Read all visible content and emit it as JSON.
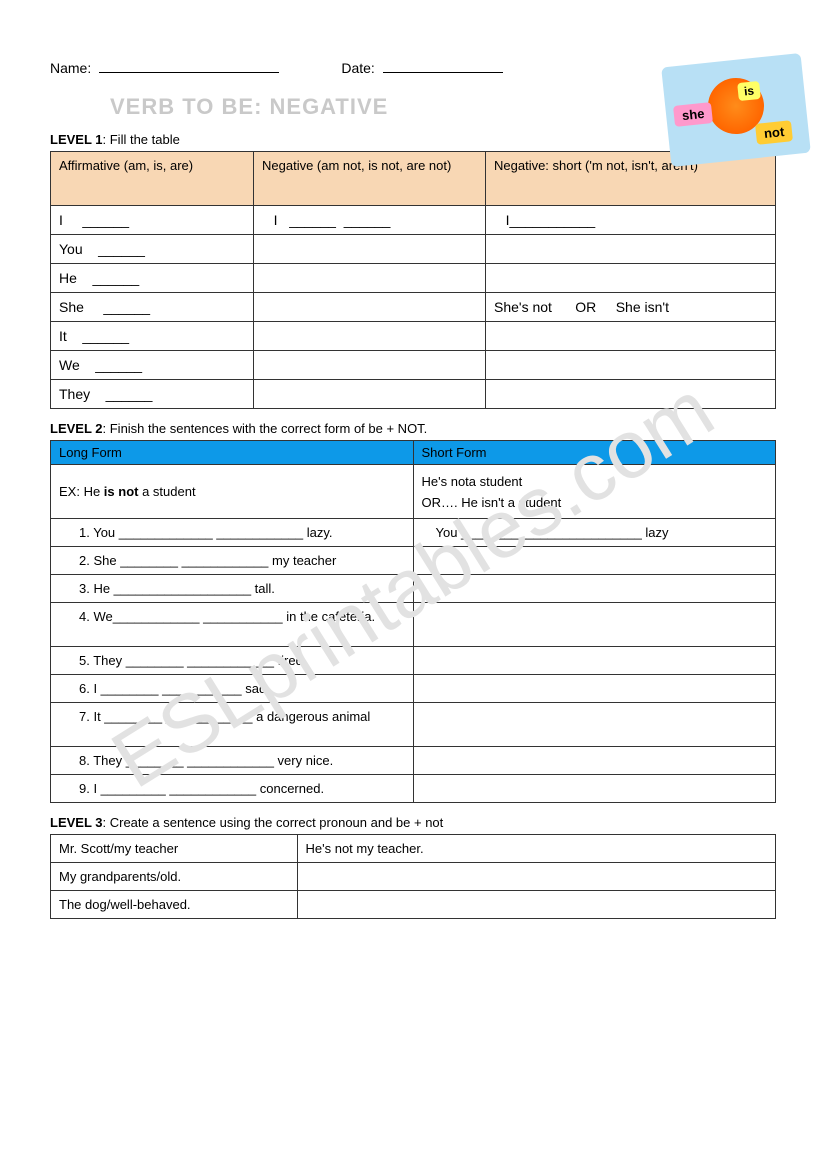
{
  "header": {
    "name_label": "Name:",
    "date_label": "Date:"
  },
  "title": "VERB TO BE: NEGATIVE",
  "watermark": "ESLprintables.com",
  "sticker": {
    "she": "she",
    "is": "is",
    "not": "not"
  },
  "level1": {
    "label_bold": "LEVEL 1",
    "label_rest": ": Fill the table",
    "headers": [
      "Affirmative (am, is, are)",
      "Negative (am not, is not, are not)",
      "Negative: short ('m not, isn't, aren't)"
    ],
    "rows": [
      {
        "c1": "I     ______",
        "c2": "   I   ______  ______",
        "c3": "   I___________"
      },
      {
        "c1": "You    ______",
        "c2": "",
        "c3": ""
      },
      {
        "c1": "He    ______",
        "c2": "",
        "c3": ""
      },
      {
        "c1": "She     ______",
        "c2": "",
        "c3": "She's not      OR     She isn't"
      },
      {
        "c1": "It    ______",
        "c2": "",
        "c3": ""
      },
      {
        "c1": "We    ______",
        "c2": "",
        "c3": ""
      },
      {
        "c1": "They    ______",
        "c2": "",
        "c3": ""
      }
    ]
  },
  "level2": {
    "label_bold": "LEVEL 2",
    "label_rest": ": Finish the sentences with the correct form of be + NOT.",
    "headers": [
      "Long Form",
      "Short Form"
    ],
    "ex_left": "EX: He is not a student",
    "ex_right_1": "He's nota student",
    "ex_right_2": "OR…. He isn't a student",
    "rows": [
      {
        "left": "1.  You _____________ ____________ lazy.",
        "right": "You _________________________ lazy"
      },
      {
        "left": "2.  She ________ ____________ my teacher",
        "right": ""
      },
      {
        "left": "3.  He ___________________ tall.",
        "right": ""
      },
      {
        "left": "4.  We____________ ___________ in the cafeteria.",
        "right": "",
        "multi": true
      },
      {
        "left": "5.  They ________ ____________ tired",
        "right": ""
      },
      {
        "left": "6.  I ________ ___________ sad",
        "right": ""
      },
      {
        "left": "7.  It ________ ____________ a dangerous animal",
        "right": "",
        "multi": true
      },
      {
        "left": "8.  They ________ ____________ very nice.",
        "right": ""
      },
      {
        "left": "9.  I _________ ____________ concerned.",
        "right": ""
      }
    ]
  },
  "level3": {
    "label_bold": "LEVEL 3",
    "label_rest": ": Create a sentence using the correct pronoun and be + not",
    "rows": [
      {
        "c1": "Mr. Scott/my teacher",
        "c2": "He's not my teacher."
      },
      {
        "c1": "My grandparents/old.",
        "c2": ""
      },
      {
        "c1": "The dog/well-behaved.",
        "c2": ""
      }
    ]
  },
  "colors": {
    "table1_header_bg": "#f8d7b4",
    "table2_header_bg": "#0d99e8",
    "title_color": "#c9c9c9",
    "watermark_color": "#e2e2e2",
    "sticker_bg": "#b8e0f5"
  }
}
